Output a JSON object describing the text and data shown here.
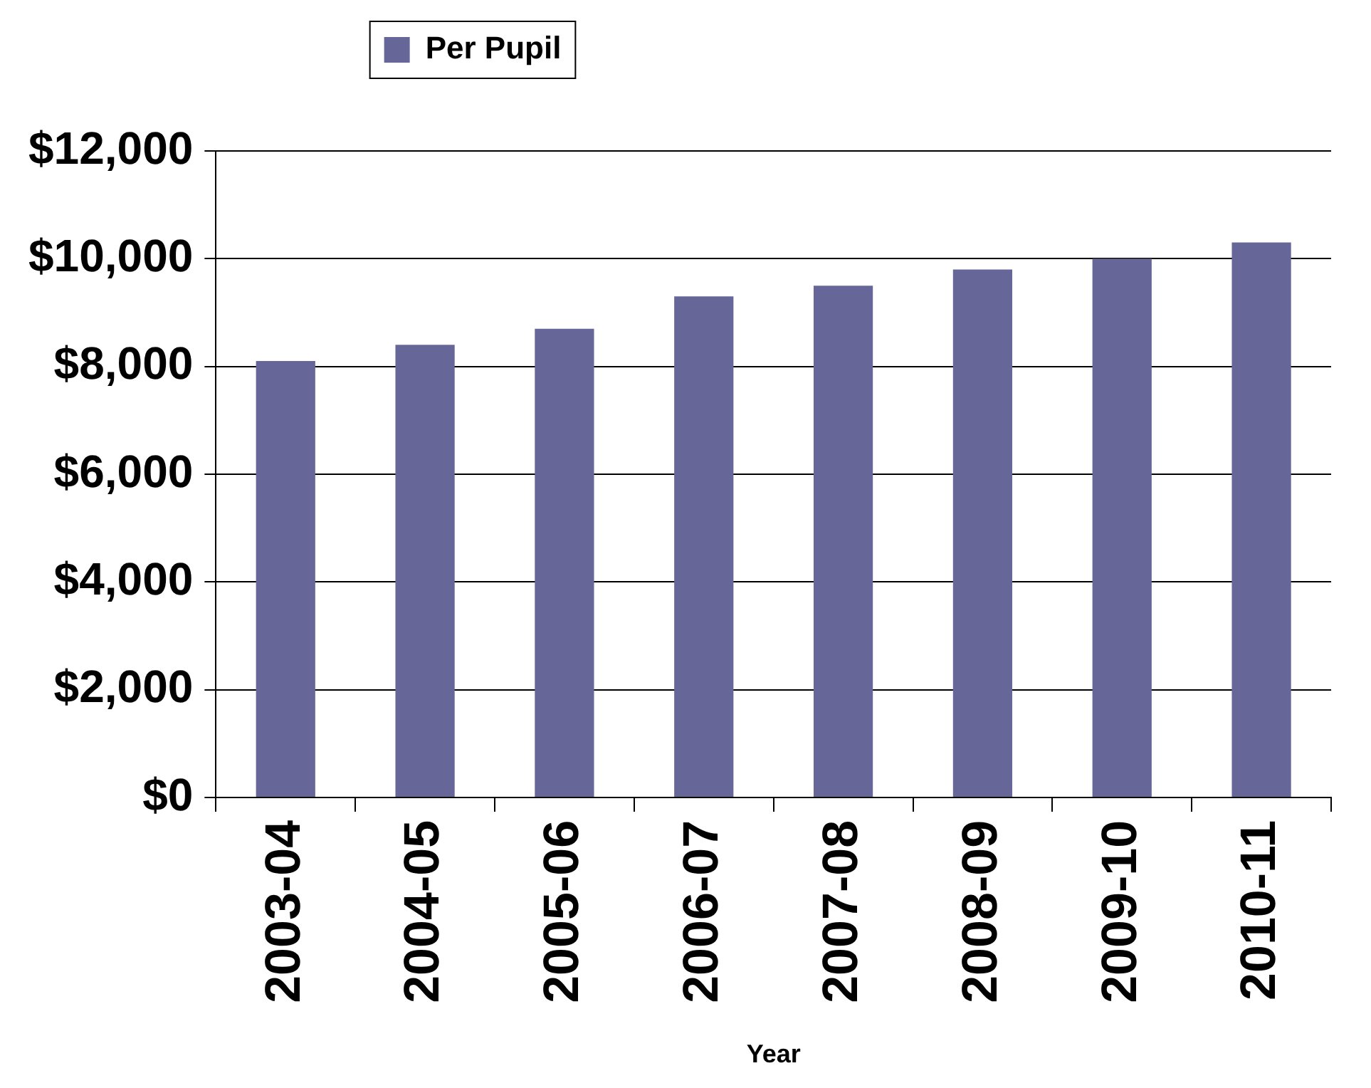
{
  "chart_data": {
    "type": "bar",
    "categories": [
      "2003-04",
      "2004-05",
      "2005-06",
      "2006-07",
      "2007-08",
      "2008-09",
      "2009-10",
      "2010-11"
    ],
    "series": [
      {
        "name": "Per Pupil",
        "color": "#666699",
        "values": [
          8100,
          8400,
          8700,
          9300,
          9500,
          9800,
          10000,
          10300
        ]
      }
    ],
    "xlabel": "Year",
    "ylim": [
      0,
      12000
    ],
    "yticks": [
      {
        "value": 0,
        "label": "$0"
      },
      {
        "value": 2000,
        "label": "$2,000"
      },
      {
        "value": 4000,
        "label": "$4,000"
      },
      {
        "value": 6000,
        "label": "$6,000"
      },
      {
        "value": 8000,
        "label": "$8,000"
      },
      {
        "value": 10000,
        "label": "$10,000"
      },
      {
        "value": 12000,
        "label": "$12,000"
      }
    ],
    "grid": "y",
    "legend": "top"
  }
}
